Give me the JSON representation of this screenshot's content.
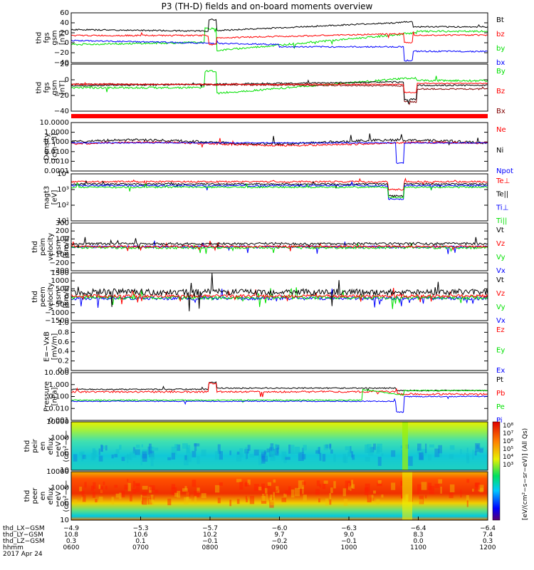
{
  "title": "P3 (TH-D) fields and on-board moments overview",
  "date": "2017 Apr 24",
  "colors": {
    "black": "#000000",
    "red": "#ff0000",
    "green": "#00e000",
    "blue": "#0000ff",
    "darkred": "#800000"
  },
  "panels": [
    {
      "id": "fgs_gsm",
      "ylabel": [
        "thd",
        "fgs",
        "gsm",
        "[nT]"
      ],
      "yticks": [
        "60",
        "40",
        "20",
        "0",
        "−20",
        "−40"
      ],
      "legend": [
        {
          "text": "Bt",
          "color": "#000000"
        },
        {
          "text": "bz",
          "color": "#ff0000"
        },
        {
          "text": "by",
          "color": "#00e000"
        },
        {
          "text": "bx",
          "color": "#0000ff"
        }
      ]
    },
    {
      "id": "fgs_gsm_dsl",
      "ylabel": [
        "thd",
        "fgs",
        "gsm",
        "[nT]"
      ],
      "yticks": [
        "20",
        "0",
        "−20",
        "−40"
      ],
      "legend": [
        {
          "text": "By",
          "color": "#00e000"
        },
        {
          "text": "Bz",
          "color": "#ff0000"
        },
        {
          "text": "Bx",
          "color": "#800000"
        }
      ]
    },
    {
      "id": "density",
      "ylabel": [
        "Density",
        "[cm−3]"
      ],
      "yticks": [
        "10.0000",
        "1.0000",
        "0.1000",
        "0.0100",
        "0.0010",
        "0.0001"
      ],
      "legend": [
        {
          "text": "Ne",
          "color": "#ff0000"
        },
        {
          "text": "Ni",
          "color": "#000000"
        },
        {
          "text": "Npot",
          "color": "#0000ff"
        }
      ]
    },
    {
      "id": "temp",
      "ylabel": [
        "magt3",
        "[eV]"
      ],
      "yticks": [
        "10⁴",
        "10³",
        "10²",
        "10¹"
      ],
      "legend": [
        {
          "text": "Te⊥",
          "color": "#ff0000"
        },
        {
          "text": "Te||",
          "color": "#000000"
        },
        {
          "text": "Ti⊥",
          "color": "#0000ff"
        },
        {
          "text": "Ti||",
          "color": "#00e000"
        }
      ]
    },
    {
      "id": "peim_vel",
      "ylabel": [
        "thd",
        "peim",
        "velocity",
        "gsm",
        "[km/s]"
      ],
      "yticks": [
        "300",
        "200",
        "100",
        "0",
        "−100",
        "−200",
        "−300"
      ],
      "legend": [
        {
          "text": "Vt",
          "color": "#000000"
        },
        {
          "text": "Vz",
          "color": "#ff0000"
        },
        {
          "text": "Vy",
          "color": "#00e000"
        },
        {
          "text": "Vx",
          "color": "#0000ff"
        }
      ]
    },
    {
      "id": "peem_vel",
      "ylabel": [
        "thd",
        "peem",
        "velocity",
        "gsm",
        "[km/s]"
      ],
      "yticks": [
        "1500",
        "1000",
        "500",
        "0",
        "−500",
        "−1000",
        "−1500"
      ],
      "legend": [
        {
          "text": "Vt",
          "color": "#000000"
        },
        {
          "text": "Vz",
          "color": "#ff0000"
        },
        {
          "text": "Vy",
          "color": "#00e000"
        },
        {
          "text": "Vx",
          "color": "#0000ff"
        }
      ]
    },
    {
      "id": "efield",
      "ylabel": [
        "E=−VxB",
        "[mV/m]"
      ],
      "yticks": [
        "1.0",
        "0.8",
        "0.6",
        "0.4",
        "0.2",
        "0.0"
      ],
      "legend": [
        {
          "text": "Ez",
          "color": "#ff0000"
        },
        {
          "text": "Ey",
          "color": "#00e000"
        },
        {
          "text": "Ex",
          "color": "#0000ff"
        }
      ]
    },
    {
      "id": "pressure",
      "ylabel": [
        "Pressure",
        "[nPa]"
      ],
      "yticks": [
        "10.000",
        "1.000",
        "0.100",
        "0.010",
        "0.001"
      ],
      "legend": [
        {
          "text": "Pt",
          "color": "#000000"
        },
        {
          "text": "Pb",
          "color": "#ff0000"
        },
        {
          "text": "Pe",
          "color": "#00e000"
        },
        {
          "text": "Pi",
          "color": "#0000ff"
        }
      ]
    },
    {
      "id": "peir",
      "ylabel": [
        "thd",
        "peir",
        "en",
        "eflux",
        "eV",
        "(cm²−s−",
        "sr−eV)"
      ],
      "yticks": [
        "10000",
        "1000",
        "100",
        "10"
      ],
      "legend": []
    },
    {
      "id": "peer",
      "ylabel": [
        "thd",
        "peer",
        "en",
        "eflux",
        "eV",
        "(cm²−s−",
        "sr−eV)"
      ],
      "yticks": [
        "10000",
        "1000",
        "100",
        "10"
      ],
      "legend": []
    }
  ],
  "colorbar": {
    "ticks": [
      "10⁸",
      "10⁷",
      "10⁶",
      "10⁵",
      "10⁴",
      "10³"
    ],
    "label": "[eV/(cm²−s−sr−eV)] (All Qs)"
  },
  "xaxis": {
    "row_labels": [
      "thd_LX−GSM",
      "thd_LY−GSM",
      "thd_LZ−GSM",
      "hhmm"
    ],
    "columns": [
      {
        "x": "−4.9",
        "y": "10.8",
        "z": "0.3",
        "t": "0600"
      },
      {
        "x": "−5.3",
        "y": "10.6",
        "z": "0.1",
        "t": "0700"
      },
      {
        "x": "−5.7",
        "y": "10.2",
        "z": "−0.1",
        "t": "0800"
      },
      {
        "x": "−6.0",
        "y": "9.7",
        "z": "−0.2",
        "t": "0900"
      },
      {
        "x": "−6.3",
        "y": "9.0",
        "z": "−0.1",
        "t": "1000"
      },
      {
        "x": "−6.4",
        "y": "8.3",
        "z": "0.0",
        "t": "1100"
      },
      {
        "x": "−6.4",
        "y": "7.4",
        "z": "0.3",
        "t": "1200"
      }
    ]
  },
  "chart_data": {
    "type": "line",
    "title": "P3 (TH-D) fields and on-board moments overview",
    "x": [
      "0600",
      "0700",
      "0800",
      "0900",
      "1000",
      "1100",
      "1200"
    ],
    "series": [
      {
        "name": "Bt",
        "values": [
          28,
          26,
          55,
          28,
          35,
          50,
          34
        ]
      },
      {
        "name": "bz",
        "values": [
          18,
          16,
          5,
          14,
          20,
          14,
          18
        ]
      },
      {
        "name": "by",
        "values": [
          2,
          0,
          -5,
          -5,
          18,
          38,
          22
        ]
      },
      {
        "name": "bx",
        "values": [
          3,
          1,
          -2,
          -10,
          -16,
          -18,
          -22
        ]
      }
    ]
  }
}
